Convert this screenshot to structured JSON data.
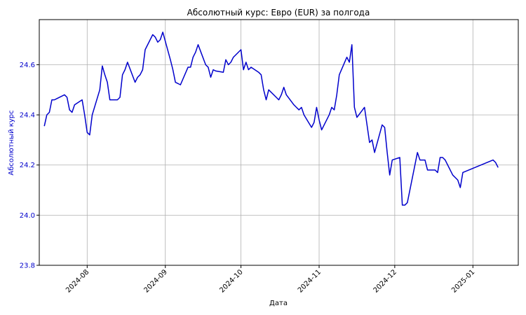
{
  "chart_data": {
    "type": "line",
    "title": "Абсолютный курс: Евро (EUR) за полгода",
    "xlabel": "Дата",
    "ylabel": "Абсолютный курс",
    "ylim": [
      23.8,
      24.78
    ],
    "xlim": [
      "2024-07-13",
      "2025-01-19"
    ],
    "yticks": [
      23.8,
      24.0,
      24.2,
      24.4,
      24.6
    ],
    "ytick_labels": [
      "23.8",
      "24.0",
      "24.2",
      "24.4",
      "24.6"
    ],
    "xticks": [
      "2024-08-01",
      "2024-09-01",
      "2024-10-01",
      "2024-11-01",
      "2024-12-01",
      "2025-01-01"
    ],
    "xtick_labels": [
      "2024-08",
      "2024-09",
      "2024-10",
      "2024-11",
      "2024-12",
      "2025-01"
    ],
    "grid": true,
    "line_color": "#0000cc",
    "ylabel_color": "#0000cc",
    "series": [
      {
        "x": [
          "2024-07-15",
          "2024-07-16",
          "2024-07-17",
          "2024-07-18",
          "2024-07-19",
          "2024-07-20",
          "2024-07-23",
          "2024-07-24",
          "2024-07-25",
          "2024-07-26",
          "2024-07-27",
          "2024-07-30",
          "2024-07-31",
          "2024-08-01",
          "2024-08-02",
          "2024-08-03",
          "2024-08-06",
          "2024-08-07",
          "2024-08-08",
          "2024-08-09",
          "2024-08-10",
          "2024-08-13",
          "2024-08-14",
          "2024-08-15",
          "2024-08-16",
          "2024-08-17",
          "2024-08-20",
          "2024-08-21",
          "2024-08-22",
          "2024-08-23",
          "2024-08-24",
          "2024-08-27",
          "2024-08-28",
          "2024-08-29",
          "2024-08-30",
          "2024-08-31",
          "2024-09-03",
          "2024-09-04",
          "2024-09-05",
          "2024-09-06",
          "2024-09-07",
          "2024-09-10",
          "2024-09-11",
          "2024-09-12",
          "2024-09-13",
          "2024-09-14",
          "2024-09-17",
          "2024-09-18",
          "2024-09-19",
          "2024-09-20",
          "2024-09-21",
          "2024-09-24",
          "2024-09-25",
          "2024-09-26",
          "2024-09-27",
          "2024-09-28",
          "2024-10-01",
          "2024-10-02",
          "2024-10-03",
          "2024-10-04",
          "2024-10-05",
          "2024-10-08",
          "2024-10-09",
          "2024-10-10",
          "2024-10-11",
          "2024-10-12",
          "2024-10-15",
          "2024-10-16",
          "2024-10-17",
          "2024-10-18",
          "2024-10-19",
          "2024-10-22",
          "2024-10-23",
          "2024-10-24",
          "2024-10-25",
          "2024-10-26",
          "2024-10-29",
          "2024-10-30",
          "2024-10-31",
          "2024-11-01",
          "2024-11-02",
          "2024-11-05",
          "2024-11-06",
          "2024-11-07",
          "2024-11-08",
          "2024-11-09",
          "2024-11-12",
          "2024-11-13",
          "2024-11-14",
          "2024-11-15",
          "2024-11-16",
          "2024-11-19",
          "2024-11-20",
          "2024-11-21",
          "2024-11-22",
          "2024-11-23",
          "2024-11-26",
          "2024-11-27",
          "2024-11-28",
          "2024-11-29",
          "2024-11-30",
          "2024-12-03",
          "2024-12-04",
          "2024-12-05",
          "2024-12-06",
          "2024-12-07",
          "2024-12-10",
          "2024-12-11",
          "2024-12-12",
          "2024-12-13",
          "2024-12-14",
          "2024-12-17",
          "2024-12-18",
          "2024-12-19",
          "2024-12-20",
          "2024-12-21",
          "2024-12-24",
          "2024-12-25",
          "2024-12-26",
          "2024-12-27",
          "2024-12-28",
          "2025-01-09",
          "2025-01-10",
          "2025-01-11"
        ],
        "y": [
          24.355,
          24.4,
          24.41,
          24.46,
          24.46,
          24.465,
          24.48,
          24.47,
          24.42,
          24.41,
          24.44,
          24.46,
          24.4,
          24.33,
          24.32,
          24.4,
          24.5,
          24.595,
          24.56,
          24.53,
          24.46,
          24.46,
          24.47,
          24.56,
          24.58,
          24.61,
          24.53,
          24.55,
          24.56,
          24.58,
          24.66,
          24.72,
          24.71,
          24.69,
          24.7,
          24.73,
          24.62,
          24.58,
          24.53,
          24.525,
          24.52,
          24.59,
          24.59,
          24.63,
          24.65,
          24.68,
          24.6,
          24.59,
          24.55,
          24.58,
          24.575,
          24.57,
          24.62,
          24.6,
          24.61,
          24.63,
          24.66,
          24.58,
          24.61,
          24.58,
          24.59,
          24.57,
          24.56,
          24.5,
          24.46,
          24.5,
          24.47,
          24.46,
          24.48,
          24.51,
          24.48,
          24.44,
          24.43,
          24.42,
          24.43,
          24.4,
          24.35,
          24.37,
          24.43,
          24.38,
          24.34,
          24.4,
          24.43,
          24.42,
          24.48,
          24.56,
          24.63,
          24.61,
          24.68,
          24.43,
          24.39,
          24.43,
          24.36,
          24.29,
          24.3,
          24.25,
          24.36,
          24.35,
          24.25,
          24.16,
          24.22,
          24.23,
          24.04,
          24.04,
          24.05,
          24.1,
          24.25,
          24.22,
          24.22,
          24.22,
          24.18,
          24.18,
          24.17,
          24.23,
          24.23,
          24.22,
          24.16,
          24.15,
          24.14,
          24.11,
          24.17,
          24.22,
          24.21,
          24.19
        ]
      }
    ]
  }
}
